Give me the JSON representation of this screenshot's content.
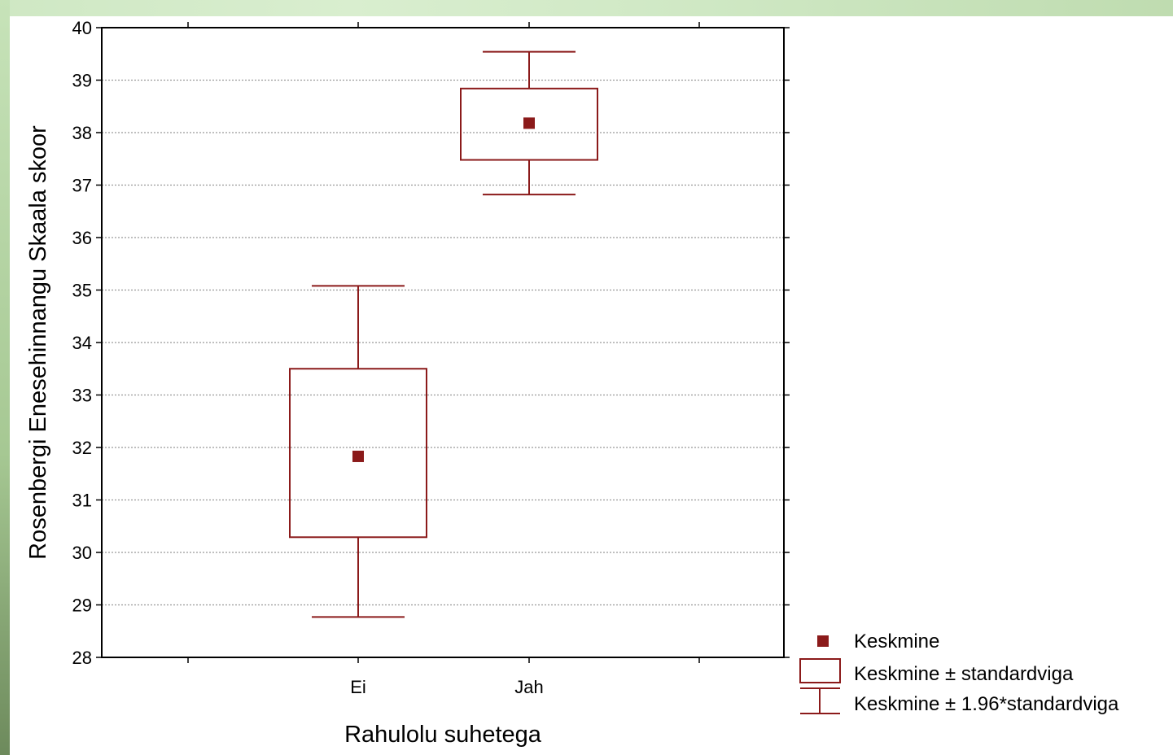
{
  "chart_data": {
    "type": "box",
    "xlabel": "Rahulolu suhetega",
    "ylabel": "Rosenbergi Enesehinnangu Skaala skoor",
    "categories": [
      "Ei",
      "Jah"
    ],
    "ylim": [
      28,
      40
    ],
    "yticks": [
      "28",
      "29",
      "30",
      "31",
      "32",
      "33",
      "34",
      "35",
      "36",
      "37",
      "38",
      "39",
      "40"
    ],
    "grid": "horizontal dotted",
    "series": [
      {
        "category": "Ei",
        "mean": 31.83,
        "se_low": 30.29,
        "se_high": 33.5,
        "ci_low": 28.77,
        "ci_high": 35.08
      },
      {
        "category": "Jah",
        "mean": 38.18,
        "se_low": 37.48,
        "se_high": 38.84,
        "ci_low": 36.82,
        "ci_high": 39.54
      }
    ],
    "legend": {
      "placement": "bottom-right",
      "items": [
        {
          "symbol": "point",
          "label": "Keskmine"
        },
        {
          "symbol": "box",
          "label": "Keskmine ± standardviga"
        },
        {
          "symbol": "whisker",
          "label": "Keskmine ± 1.96*standardviga"
        }
      ]
    },
    "colors": {
      "series": "#8b1a1a",
      "grid": "#999999",
      "axis": "#000000"
    }
  }
}
